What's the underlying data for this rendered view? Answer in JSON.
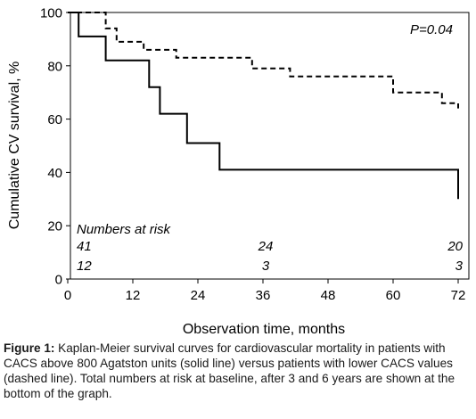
{
  "chart_data": {
    "type": "line",
    "subtype": "kaplan-meier step",
    "xlabel": "Observation time, months",
    "ylabel": "Cumulative CV survival, %",
    "xlim": [
      0,
      72
    ],
    "ylim": [
      0,
      100
    ],
    "xticks": [
      0,
      12,
      24,
      36,
      48,
      60,
      72
    ],
    "yticks": [
      0,
      20,
      40,
      60,
      80,
      100
    ],
    "grid": false,
    "annotation": "P=0.04",
    "series": [
      {
        "style": "solid",
        "points": [
          [
            0,
            100
          ],
          [
            2,
            100
          ],
          [
            2,
            91
          ],
          [
            7,
            91
          ],
          [
            7,
            82
          ],
          [
            15,
            82
          ],
          [
            15,
            72
          ],
          [
            17,
            72
          ],
          [
            17,
            62
          ],
          [
            22,
            62
          ],
          [
            22,
            51
          ],
          [
            28,
            51
          ],
          [
            28,
            41
          ],
          [
            72,
            41
          ],
          [
            72,
            30
          ]
        ]
      },
      {
        "style": "dashed",
        "points": [
          [
            0,
            100
          ],
          [
            7,
            100
          ],
          [
            7,
            94
          ],
          [
            9,
            94
          ],
          [
            9,
            89
          ],
          [
            14,
            89
          ],
          [
            14,
            86
          ],
          [
            20,
            86
          ],
          [
            20,
            83
          ],
          [
            34,
            83
          ],
          [
            34,
            79
          ],
          [
            41,
            79
          ],
          [
            41,
            76
          ],
          [
            60,
            76
          ],
          [
            60,
            70
          ],
          [
            69,
            70
          ],
          [
            69,
            66
          ],
          [
            72,
            66
          ],
          [
            72,
            64
          ]
        ]
      }
    ],
    "risk_table": {
      "title": "Numbers at risk",
      "timepoints": [
        0,
        36,
        72
      ],
      "rows": [
        {
          "values": [
            "41",
            "24",
            "20"
          ]
        },
        {
          "values": [
            "12",
            "3",
            "3"
          ]
        }
      ]
    }
  },
  "caption": {
    "label": "Figure 1:",
    "text": " Kaplan-Meier survival curves for cardiovascular mortality in patients with CACS above 800 Agatston units (solid line) versus patients with lower CACS values (dashed line). Total numbers at risk at baseline, after 3 and 6 years are shown at the bottom of the graph."
  }
}
